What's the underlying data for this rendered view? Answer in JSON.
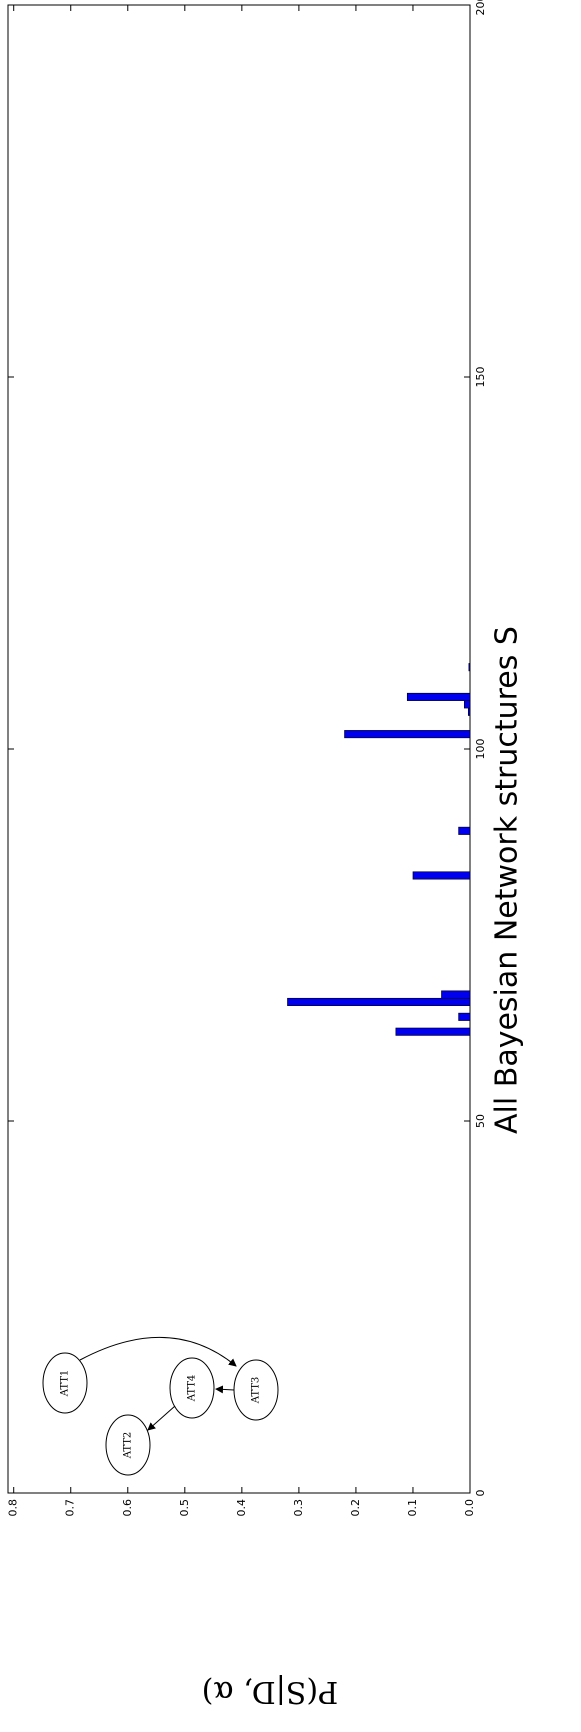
{
  "chart_data": {
    "type": "bar",
    "xlabel": "All Bayesian Network structures S",
    "ylabel": "P(S|D, α)",
    "x": [
      62,
      64,
      66,
      67,
      83,
      89,
      102,
      105,
      106,
      107,
      111
    ],
    "values": [
      0.13,
      0.02,
      0.32,
      0.05,
      0.1,
      0.02,
      0.22,
      0.003,
      0.01,
      0.11,
      0.002
    ],
    "color": "#0000ee",
    "xlim": [
      0,
      200
    ],
    "xticks": [
      0,
      50,
      100,
      150,
      200
    ],
    "ylim": [
      0,
      0.81
    ],
    "yticks": [
      {
        "value": 0,
        "label": "0.0"
      },
      0.1,
      0.2,
      0.3,
      0.4,
      0.5,
      0.6,
      0.7,
      0.8
    ],
    "inset_labels": [
      "ATT1",
      "ATT2",
      "ATT3",
      "ATT4"
    ]
  }
}
